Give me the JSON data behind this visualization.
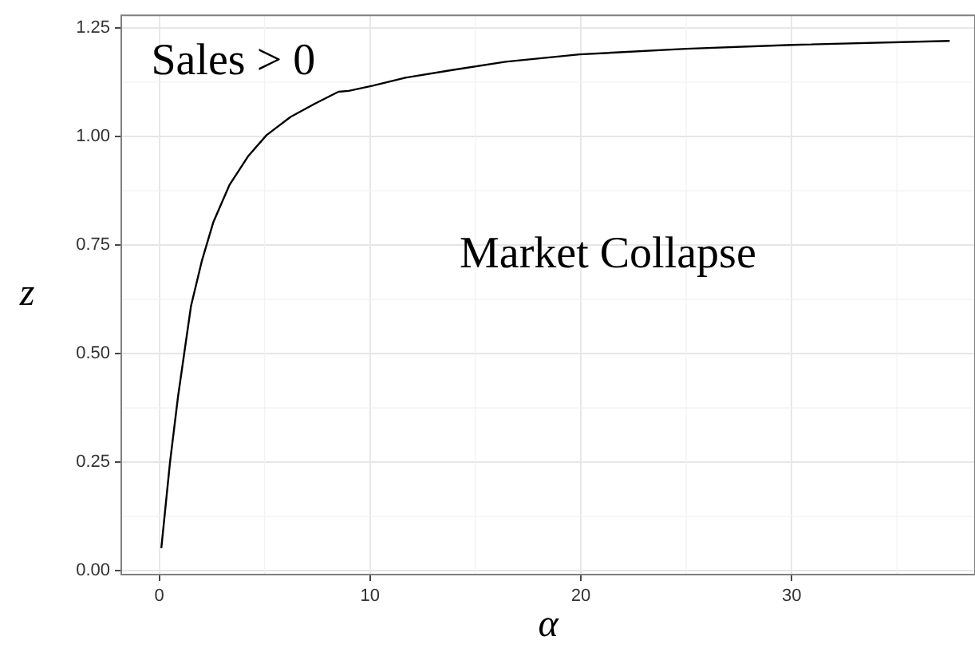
{
  "chart_data": {
    "type": "line",
    "xlabel": "α",
    "ylabel": "z",
    "x": [
      0.1,
      0.51,
      0.89,
      1.19,
      1.51,
      2.02,
      2.57,
      3.33,
      4.21,
      5.09,
      6.23,
      7.36,
      8.5,
      8.99,
      10.13,
      11.64,
      13.9,
      16.43,
      19.95,
      25.0,
      30.04,
      37.5
    ],
    "series": [
      {
        "color": "#000000",
        "values": [
          0.052,
          0.249,
          0.4,
          0.502,
          0.61,
          0.713,
          0.803,
          0.888,
          0.954,
          1.003,
          1.045,
          1.075,
          1.103,
          1.105,
          1.117,
          1.135,
          1.153,
          1.172,
          1.189,
          1.202,
          1.211,
          1.22
        ]
      }
    ],
    "xlim": [
      -1.8,
      38.7
    ],
    "xticks": [
      0,
      10,
      20,
      30
    ],
    "ylim": [
      -0.009,
      1.279
    ],
    "yticks": [
      {
        "value": 0,
        "label": "0.00"
      },
      {
        "value": 0.25,
        "label": "0.25"
      },
      {
        "value": 0.5,
        "label": "0.50"
      },
      {
        "value": 0.75,
        "label": "0.75"
      },
      {
        "value": 1,
        "label": "1.00"
      },
      {
        "value": 1.25,
        "label": "1.25"
      }
    ],
    "annotations": [
      "Sales > 0",
      "Market Collapse"
    ],
    "grid": true,
    "legend": false,
    "marker": "none",
    "line_style": "solid"
  }
}
